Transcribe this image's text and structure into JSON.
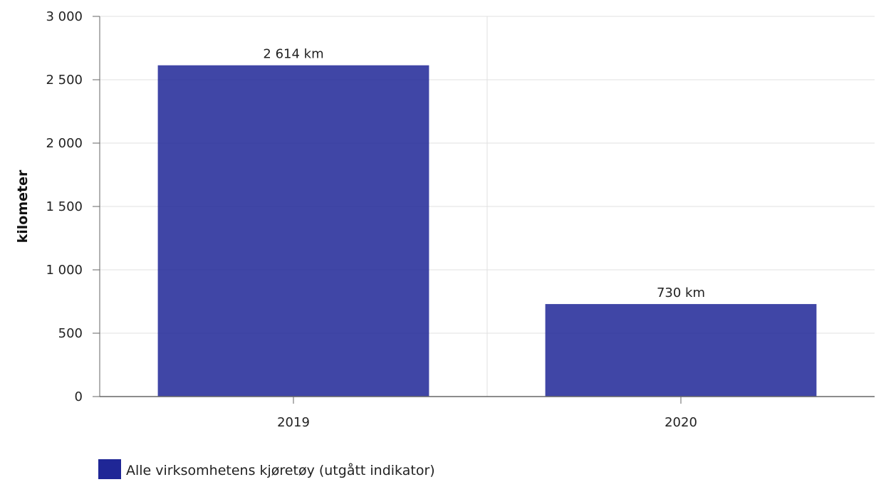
{
  "chart_data": {
    "type": "bar",
    "categories": [
      "2019",
      "2020"
    ],
    "series": [
      {
        "name": "Alle virksomhetens kjøretøy (utgått indikator)",
        "values": [
          2614,
          730
        ],
        "value_labels": [
          "2 614 km",
          "730 km"
        ],
        "color": "#1f2696"
      }
    ],
    "ylabel": "kilometer",
    "xlabel": "",
    "ylim": [
      0,
      3000
    ],
    "yticks": [
      0,
      500,
      1000,
      1500,
      2000,
      2500,
      3000
    ],
    "ytick_labels": [
      "0",
      "500",
      "1 000",
      "1 500",
      "2 000",
      "2 500",
      "3 000"
    ],
    "grid": true,
    "legend_position": "bottom-left"
  },
  "colors": {
    "bar": "#1f2696",
    "grid": "#e0e0e0",
    "axis": "#666666"
  }
}
